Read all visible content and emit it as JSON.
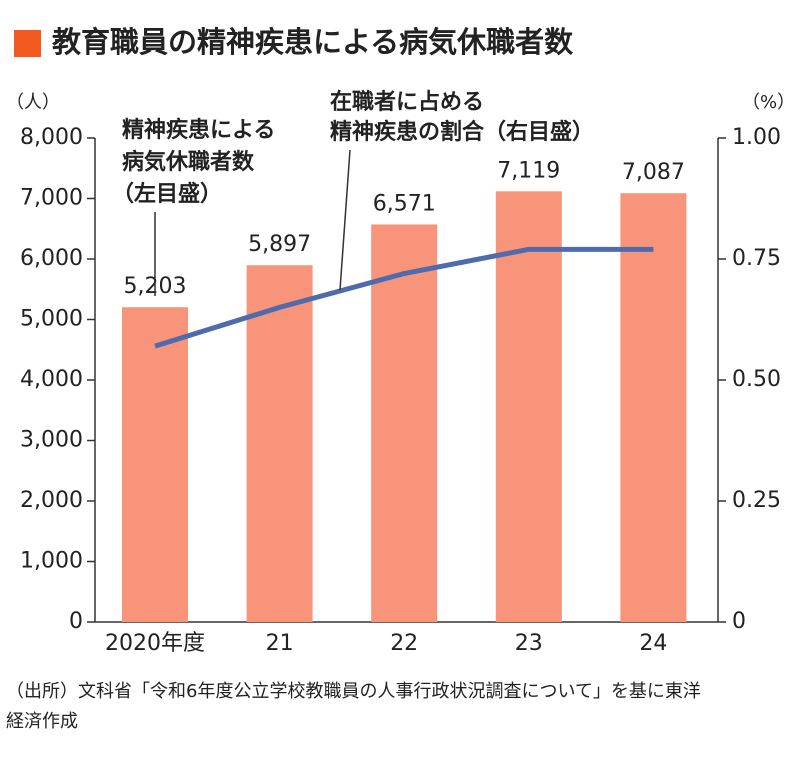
{
  "chart_data": {
    "type": "bar",
    "title": "教育職員の精神疾患による病気休職者数",
    "y_unit": "（人）",
    "y2_unit": "（%）",
    "categories": [
      "2020年度",
      "21",
      "22",
      "23",
      "24"
    ],
    "series": [
      {
        "type": "bar",
        "color": "#f7947a",
        "values": [
          5203,
          5897,
          6571,
          7119,
          7087
        ],
        "value_labels": [
          "5,203",
          "5,897",
          "6,571",
          "7,119",
          "7,087"
        ]
      },
      {
        "type": "line",
        "axis": "y2",
        "color": "#4f6aad",
        "values": [
          0.57,
          0.65,
          0.72,
          0.77,
          0.77
        ]
      }
    ],
    "ylim": [
      0,
      8000
    ],
    "yticks": [
      0,
      {
        "value": 1000,
        "label": "1,000"
      },
      {
        "value": 2000,
        "label": "2,000"
      },
      {
        "value": 3000,
        "label": "3,000"
      },
      {
        "value": 4000,
        "label": "4,000"
      },
      {
        "value": 5000,
        "label": "5,000"
      },
      {
        "value": 6000,
        "label": "6,000"
      },
      {
        "value": 7000,
        "label": "7,000"
      },
      {
        "value": 8000,
        "label": "8,000"
      }
    ],
    "y2lim": [
      0,
      1
    ],
    "y2ticks": [
      0,
      0.25,
      {
        "value": 0.5,
        "label": "0.50"
      },
      0.75,
      {
        "value": 1,
        "label": "1.00"
      }
    ],
    "grid": false,
    "annotations": {
      "bars": {
        "lines": [
          "精神疾患による",
          "病気休職者数"
        ],
        "scale": "（左目盛）",
        "color": "#f04e23"
      },
      "line": {
        "lines": [
          "在職者に占める",
          "精神疾患の割合"
        ],
        "scale": "（右目盛）",
        "color": "#4f6aad"
      }
    },
    "source": [
      "（出所）文科省「令和6年度公立学校教職員の人事行政状況調査について」を基に東洋",
      "経済作成"
    ]
  }
}
